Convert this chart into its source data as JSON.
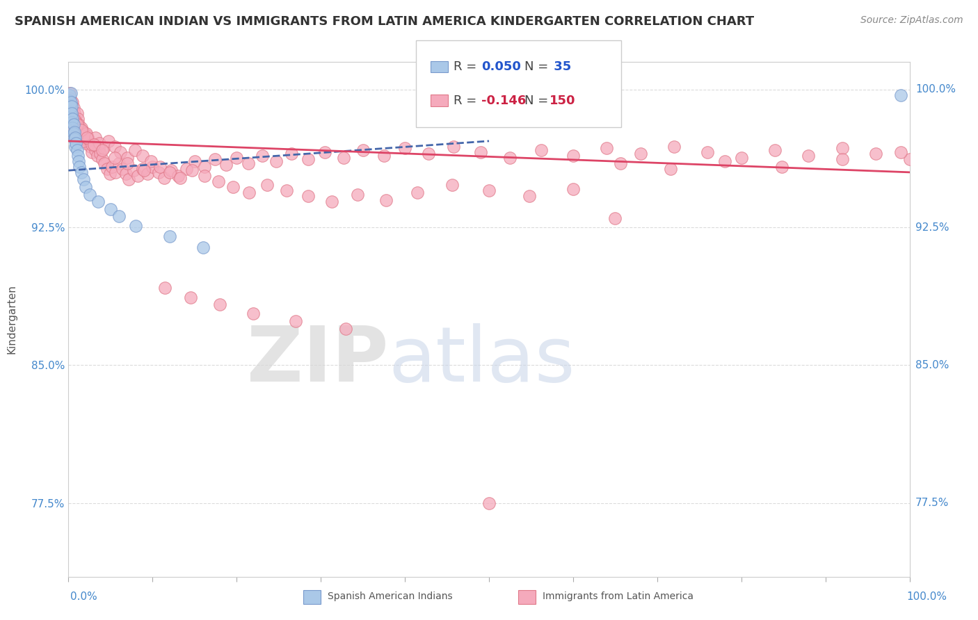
{
  "title": "SPANISH AMERICAN INDIAN VS IMMIGRANTS FROM LATIN AMERICA KINDERGARTEN CORRELATION CHART",
  "source": "Source: ZipAtlas.com",
  "ylabel": "Kindergarten",
  "xlim": [
    0.0,
    1.0
  ],
  "ylim": [
    0.735,
    1.015
  ],
  "yticks": [
    0.775,
    0.85,
    0.925,
    1.0
  ],
  "ytick_labels": [
    "77.5%",
    "85.0%",
    "92.5%",
    "100.0%"
  ],
  "xtick_labels": [
    "0.0%",
    "100.0%"
  ],
  "legend_r_blue": "0.050",
  "legend_n_blue": "35",
  "legend_r_pink": "-0.146",
  "legend_n_pink": "150",
  "blue_color": "#aac8e8",
  "pink_color": "#f5aabc",
  "blue_edge": "#7799cc",
  "pink_edge": "#e07888",
  "trend_blue_color": "#4466aa",
  "trend_pink_color": "#dd4466",
  "title_fontsize": 13,
  "axis_label_fontsize": 11,
  "tick_fontsize": 11,
  "source_fontsize": 10,
  "blue_trend_x0": 0.0,
  "blue_trend_y0": 0.956,
  "blue_trend_x1": 0.5,
  "blue_trend_y1": 0.972,
  "pink_trend_x0": 0.0,
  "pink_trend_y0": 0.972,
  "pink_trend_x1": 1.0,
  "pink_trend_y1": 0.955,
  "blue_x": [
    0.001,
    0.001,
    0.002,
    0.002,
    0.002,
    0.003,
    0.003,
    0.003,
    0.004,
    0.004,
    0.004,
    0.005,
    0.005,
    0.006,
    0.006,
    0.007,
    0.007,
    0.008,
    0.008,
    0.009,
    0.01,
    0.011,
    0.012,
    0.013,
    0.015,
    0.018,
    0.02,
    0.025,
    0.035,
    0.05,
    0.06,
    0.08,
    0.12,
    0.16,
    0.99
  ],
  "blue_y": [
    0.997,
    0.994,
    0.991,
    0.988,
    0.985,
    0.998,
    0.993,
    0.986,
    0.991,
    0.987,
    0.982,
    0.984,
    0.979,
    0.981,
    0.976,
    0.977,
    0.973,
    0.974,
    0.969,
    0.971,
    0.967,
    0.964,
    0.961,
    0.958,
    0.955,
    0.951,
    0.947,
    0.943,
    0.939,
    0.935,
    0.931,
    0.926,
    0.92,
    0.914,
    0.997
  ],
  "pink_x": [
    0.001,
    0.002,
    0.003,
    0.004,
    0.005,
    0.006,
    0.007,
    0.008,
    0.009,
    0.01,
    0.011,
    0.012,
    0.013,
    0.014,
    0.015,
    0.016,
    0.017,
    0.018,
    0.019,
    0.02,
    0.022,
    0.024,
    0.026,
    0.028,
    0.03,
    0.032,
    0.034,
    0.036,
    0.038,
    0.04,
    0.043,
    0.046,
    0.049,
    0.052,
    0.056,
    0.06,
    0.064,
    0.068,
    0.072,
    0.077,
    0.082,
    0.088,
    0.094,
    0.1,
    0.107,
    0.114,
    0.122,
    0.13,
    0.14,
    0.15,
    0.162,
    0.174,
    0.187,
    0.2,
    0.214,
    0.23,
    0.247,
    0.265,
    0.285,
    0.305,
    0.327,
    0.35,
    0.375,
    0.4,
    0.428,
    0.458,
    0.49,
    0.525,
    0.562,
    0.6,
    0.64,
    0.68,
    0.72,
    0.76,
    0.8,
    0.84,
    0.88,
    0.92,
    0.96,
    1.0,
    0.001,
    0.002,
    0.003,
    0.004,
    0.005,
    0.006,
    0.007,
    0.008,
    0.009,
    0.01,
    0.012,
    0.014,
    0.016,
    0.018,
    0.021,
    0.024,
    0.028,
    0.032,
    0.037,
    0.042,
    0.048,
    0.055,
    0.062,
    0.07,
    0.079,
    0.088,
    0.098,
    0.109,
    0.12,
    0.133,
    0.147,
    0.162,
    0.178,
    0.196,
    0.215,
    0.236,
    0.259,
    0.285,
    0.313,
    0.344,
    0.378,
    0.415,
    0.456,
    0.5,
    0.548,
    0.6,
    0.656,
    0.716,
    0.78,
    0.848,
    0.92,
    0.99,
    0.003,
    0.006,
    0.01,
    0.015,
    0.022,
    0.03,
    0.04,
    0.055,
    0.07,
    0.09,
    0.115,
    0.145,
    0.18,
    0.22,
    0.27,
    0.33,
    0.5,
    0.65
  ],
  "pink_y": [
    0.998,
    0.995,
    0.992,
    0.989,
    0.993,
    0.99,
    0.987,
    0.984,
    0.981,
    0.987,
    0.984,
    0.981,
    0.978,
    0.975,
    0.979,
    0.976,
    0.973,
    0.977,
    0.974,
    0.971,
    0.975,
    0.972,
    0.969,
    0.966,
    0.97,
    0.967,
    0.964,
    0.968,
    0.965,
    0.962,
    0.96,
    0.957,
    0.954,
    0.958,
    0.955,
    0.96,
    0.957,
    0.954,
    0.951,
    0.956,
    0.953,
    0.957,
    0.954,
    0.958,
    0.955,
    0.952,
    0.956,
    0.953,
    0.957,
    0.961,
    0.958,
    0.962,
    0.959,
    0.963,
    0.96,
    0.964,
    0.961,
    0.965,
    0.962,
    0.966,
    0.963,
    0.967,
    0.964,
    0.968,
    0.965,
    0.969,
    0.966,
    0.963,
    0.967,
    0.964,
    0.968,
    0.965,
    0.969,
    0.966,
    0.963,
    0.967,
    0.964,
    0.968,
    0.965,
    0.962,
    0.99,
    0.987,
    0.984,
    0.981,
    0.985,
    0.982,
    0.979,
    0.983,
    0.98,
    0.977,
    0.974,
    0.978,
    0.975,
    0.972,
    0.976,
    0.973,
    0.97,
    0.974,
    0.971,
    0.968,
    0.972,
    0.969,
    0.966,
    0.963,
    0.967,
    0.964,
    0.961,
    0.958,
    0.955,
    0.952,
    0.956,
    0.953,
    0.95,
    0.947,
    0.944,
    0.948,
    0.945,
    0.942,
    0.939,
    0.943,
    0.94,
    0.944,
    0.948,
    0.945,
    0.942,
    0.946,
    0.96,
    0.957,
    0.961,
    0.958,
    0.962,
    0.966,
    0.988,
    0.984,
    0.981,
    0.978,
    0.974,
    0.97,
    0.967,
    0.963,
    0.96,
    0.956,
    0.892,
    0.887,
    0.883,
    0.878,
    0.874,
    0.87,
    0.775,
    0.93
  ]
}
